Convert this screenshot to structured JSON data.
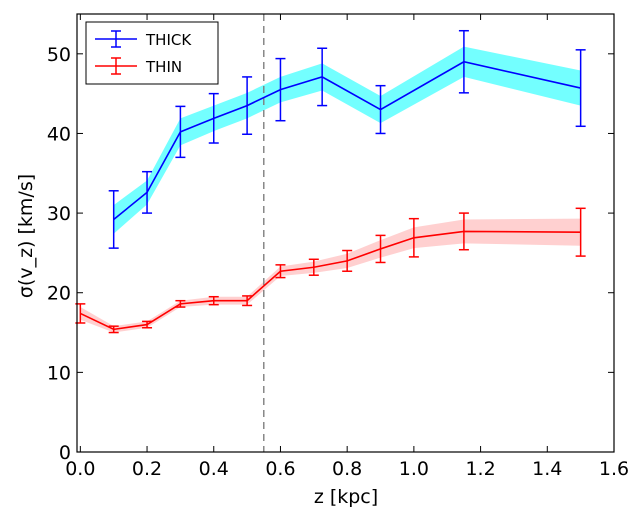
{
  "chart_data": {
    "type": "line",
    "xlabel": "z [kpc]",
    "ylabel": "σ(v_z) [km/s]",
    "xlim": [
      -0.01,
      1.6
    ],
    "ylim": [
      0,
      55
    ],
    "xticks": [
      "0.0",
      "0.2",
      "0.4",
      "0.6",
      "0.8",
      "1.0",
      "1.2",
      "1.4",
      "1.6"
    ],
    "xtick_values": [
      0.0,
      0.2,
      0.4,
      0.6,
      0.8,
      1.0,
      1.2,
      1.4,
      1.6
    ],
    "yticks": [
      "0",
      "10",
      "20",
      "30",
      "40",
      "50"
    ],
    "ytick_values": [
      0,
      10,
      20,
      30,
      40,
      50
    ],
    "grid": false,
    "legend_position": "top-left",
    "vline": {
      "x": 0.55,
      "style": "dashed",
      "color": "#7f7f7f"
    },
    "series": [
      {
        "name": "THICK",
        "color": "#0000ff",
        "band_color": "#00ffff",
        "x": [
          0.1,
          0.2,
          0.3,
          0.4,
          0.5,
          0.6,
          0.725,
          0.9,
          1.15,
          1.5
        ],
        "y": [
          29.2,
          32.6,
          40.2,
          41.9,
          43.5,
          45.5,
          47.1,
          43.0,
          49.0,
          45.7
        ],
        "err": [
          3.6,
          2.6,
          3.2,
          3.1,
          3.6,
          3.9,
          3.6,
          3.0,
          3.9,
          4.8
        ],
        "band": [
          1.8,
          1.5,
          1.7,
          1.6,
          1.6,
          1.6,
          1.7,
          1.7,
          1.9,
          2.2
        ]
      },
      {
        "name": "THIN",
        "color": "#ff0000",
        "band_color": "#ffaaaa",
        "x": [
          0.0,
          0.1,
          0.2,
          0.3,
          0.4,
          0.5,
          0.6,
          0.7,
          0.8,
          0.9,
          1.0,
          1.15,
          1.5
        ],
        "y": [
          17.4,
          15.4,
          16.0,
          18.6,
          19.0,
          19.0,
          22.7,
          23.2,
          24.0,
          25.5,
          26.9,
          27.7,
          27.6
        ],
        "err": [
          1.2,
          0.4,
          0.4,
          0.4,
          0.5,
          0.6,
          0.8,
          1.0,
          1.3,
          1.7,
          2.4,
          2.3,
          3.0
        ],
        "band": [
          0.8,
          0.4,
          0.4,
          0.4,
          0.5,
          0.5,
          0.6,
          0.7,
          0.9,
          1.1,
          1.3,
          1.5,
          1.7
        ]
      }
    ]
  }
}
